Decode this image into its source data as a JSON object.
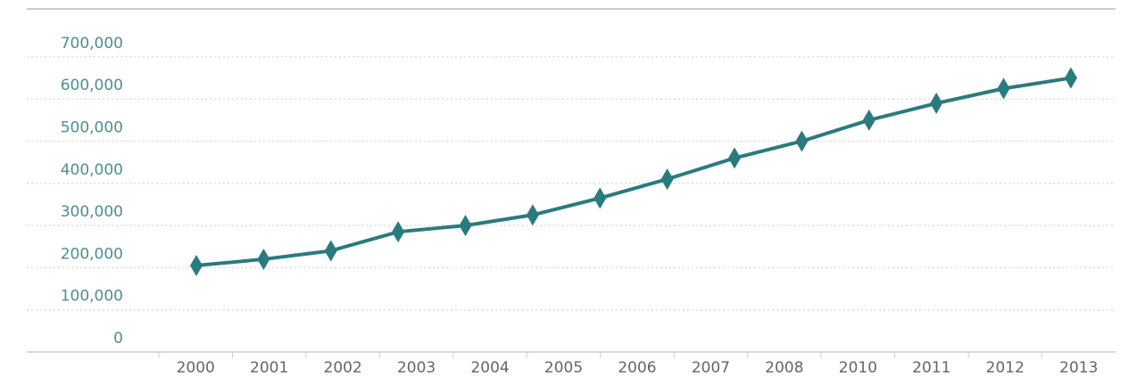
{
  "chart_data": {
    "type": "line",
    "categories": [
      "2000",
      "2001",
      "2002",
      "2003",
      "2004",
      "2005",
      "2006",
      "2007",
      "2008",
      "2010",
      "2011",
      "2012",
      "2013",
      null
    ],
    "series": [
      {
        "color": "#2a7b7d",
        "values": [
          205000,
          220000,
          240000,
          285000,
          300000,
          325000,
          365000,
          410000,
          460000,
          500000,
          550000,
          590000,
          625000,
          650000
        ]
      }
    ],
    "ylim": [
      0,
      800000
    ],
    "yticks": [
      0,
      {
        "value": 100000,
        "label": "100,000"
      },
      {
        "value": 200000,
        "label": "200,000"
      },
      {
        "value": 300000,
        "label": "300,000"
      },
      {
        "value": 400000,
        "label": "400,000"
      },
      {
        "value": 500000,
        "label": "500,000"
      },
      {
        "value": 600000,
        "label": "600,000"
      },
      {
        "value": 700000,
        "label": "700,000"
      }
    ],
    "grid": true
  }
}
